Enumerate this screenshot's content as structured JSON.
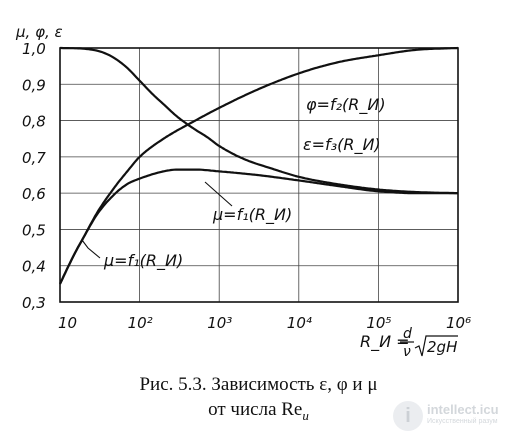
{
  "chart_data": {
    "type": "line",
    "ylabel": "μ, φ, ε",
    "x_tick_labels": [
      "10",
      "10²",
      "10³",
      "10⁴",
      "10⁵",
      "10⁶"
    ],
    "x_ticks": [
      10,
      100,
      1000,
      10000,
      100000,
      1000000
    ],
    "y_tick_labels": [
      "1,0",
      "0,9",
      "0,8",
      "0,7",
      "0,6",
      "0,5",
      "0,4",
      "0,3"
    ],
    "y_ticks": [
      1.0,
      0.9,
      0.8,
      0.7,
      0.6,
      0.5,
      0.4,
      0.3
    ],
    "xlim": [
      10,
      1000000
    ],
    "ylim": [
      0.3,
      1.0
    ],
    "x_scale": "log",
    "grid": true,
    "series": [
      {
        "name": "ε=f₃(R_И)",
        "x": [
          10,
          20,
          30,
          40,
          50,
          70,
          100,
          150,
          200,
          300,
          500,
          700,
          1000,
          2000,
          5000,
          10000,
          30000,
          100000,
          300000,
          1000000
        ],
        "y": [
          1.0,
          0.998,
          0.992,
          0.982,
          0.97,
          0.945,
          0.91,
          0.87,
          0.845,
          0.81,
          0.775,
          0.755,
          0.73,
          0.695,
          0.665,
          0.645,
          0.625,
          0.61,
          0.603,
          0.6
        ]
      },
      {
        "name": "φ=f₂(R_И)",
        "x": [
          10,
          15,
          20,
          30,
          50,
          70,
          100,
          200,
          500,
          1000,
          3000,
          10000,
          30000,
          100000,
          300000,
          1000000
        ],
        "y": [
          0.35,
          0.43,
          0.48,
          0.55,
          0.62,
          0.66,
          0.7,
          0.75,
          0.8,
          0.835,
          0.885,
          0.93,
          0.96,
          0.98,
          0.995,
          1.0
        ]
      },
      {
        "name": "μ=f₁(R_И)",
        "x": [
          10,
          15,
          20,
          30,
          50,
          70,
          100,
          200,
          300,
          500,
          1000,
          3000,
          10000,
          30000,
          100000,
          300000,
          1000000
        ],
        "y": [
          0.35,
          0.43,
          0.48,
          0.545,
          0.6,
          0.625,
          0.64,
          0.66,
          0.665,
          0.665,
          0.66,
          0.65,
          0.635,
          0.62,
          0.605,
          0.6,
          0.6
        ]
      }
    ],
    "annotations": {
      "phi": "φ=f₂(R_И)",
      "eps": "ε=f₃(R_И)",
      "mu_upper": "μ=f₁(R_И)",
      "mu_lower": "μ=f₁(R_И)",
      "formula_lhs": "R_И =",
      "formula_num": "d",
      "formula_den": "ν",
      "formula_root": "2gH"
    }
  },
  "caption": {
    "line1": "Рис. 5.3. Зависимость ε, φ и μ",
    "line2_prefix": "от числа Re",
    "line2_sub": "и"
  },
  "watermark": {
    "main": "intellect.icu",
    "sub": "Искусственный разум",
    "icon": "i"
  }
}
